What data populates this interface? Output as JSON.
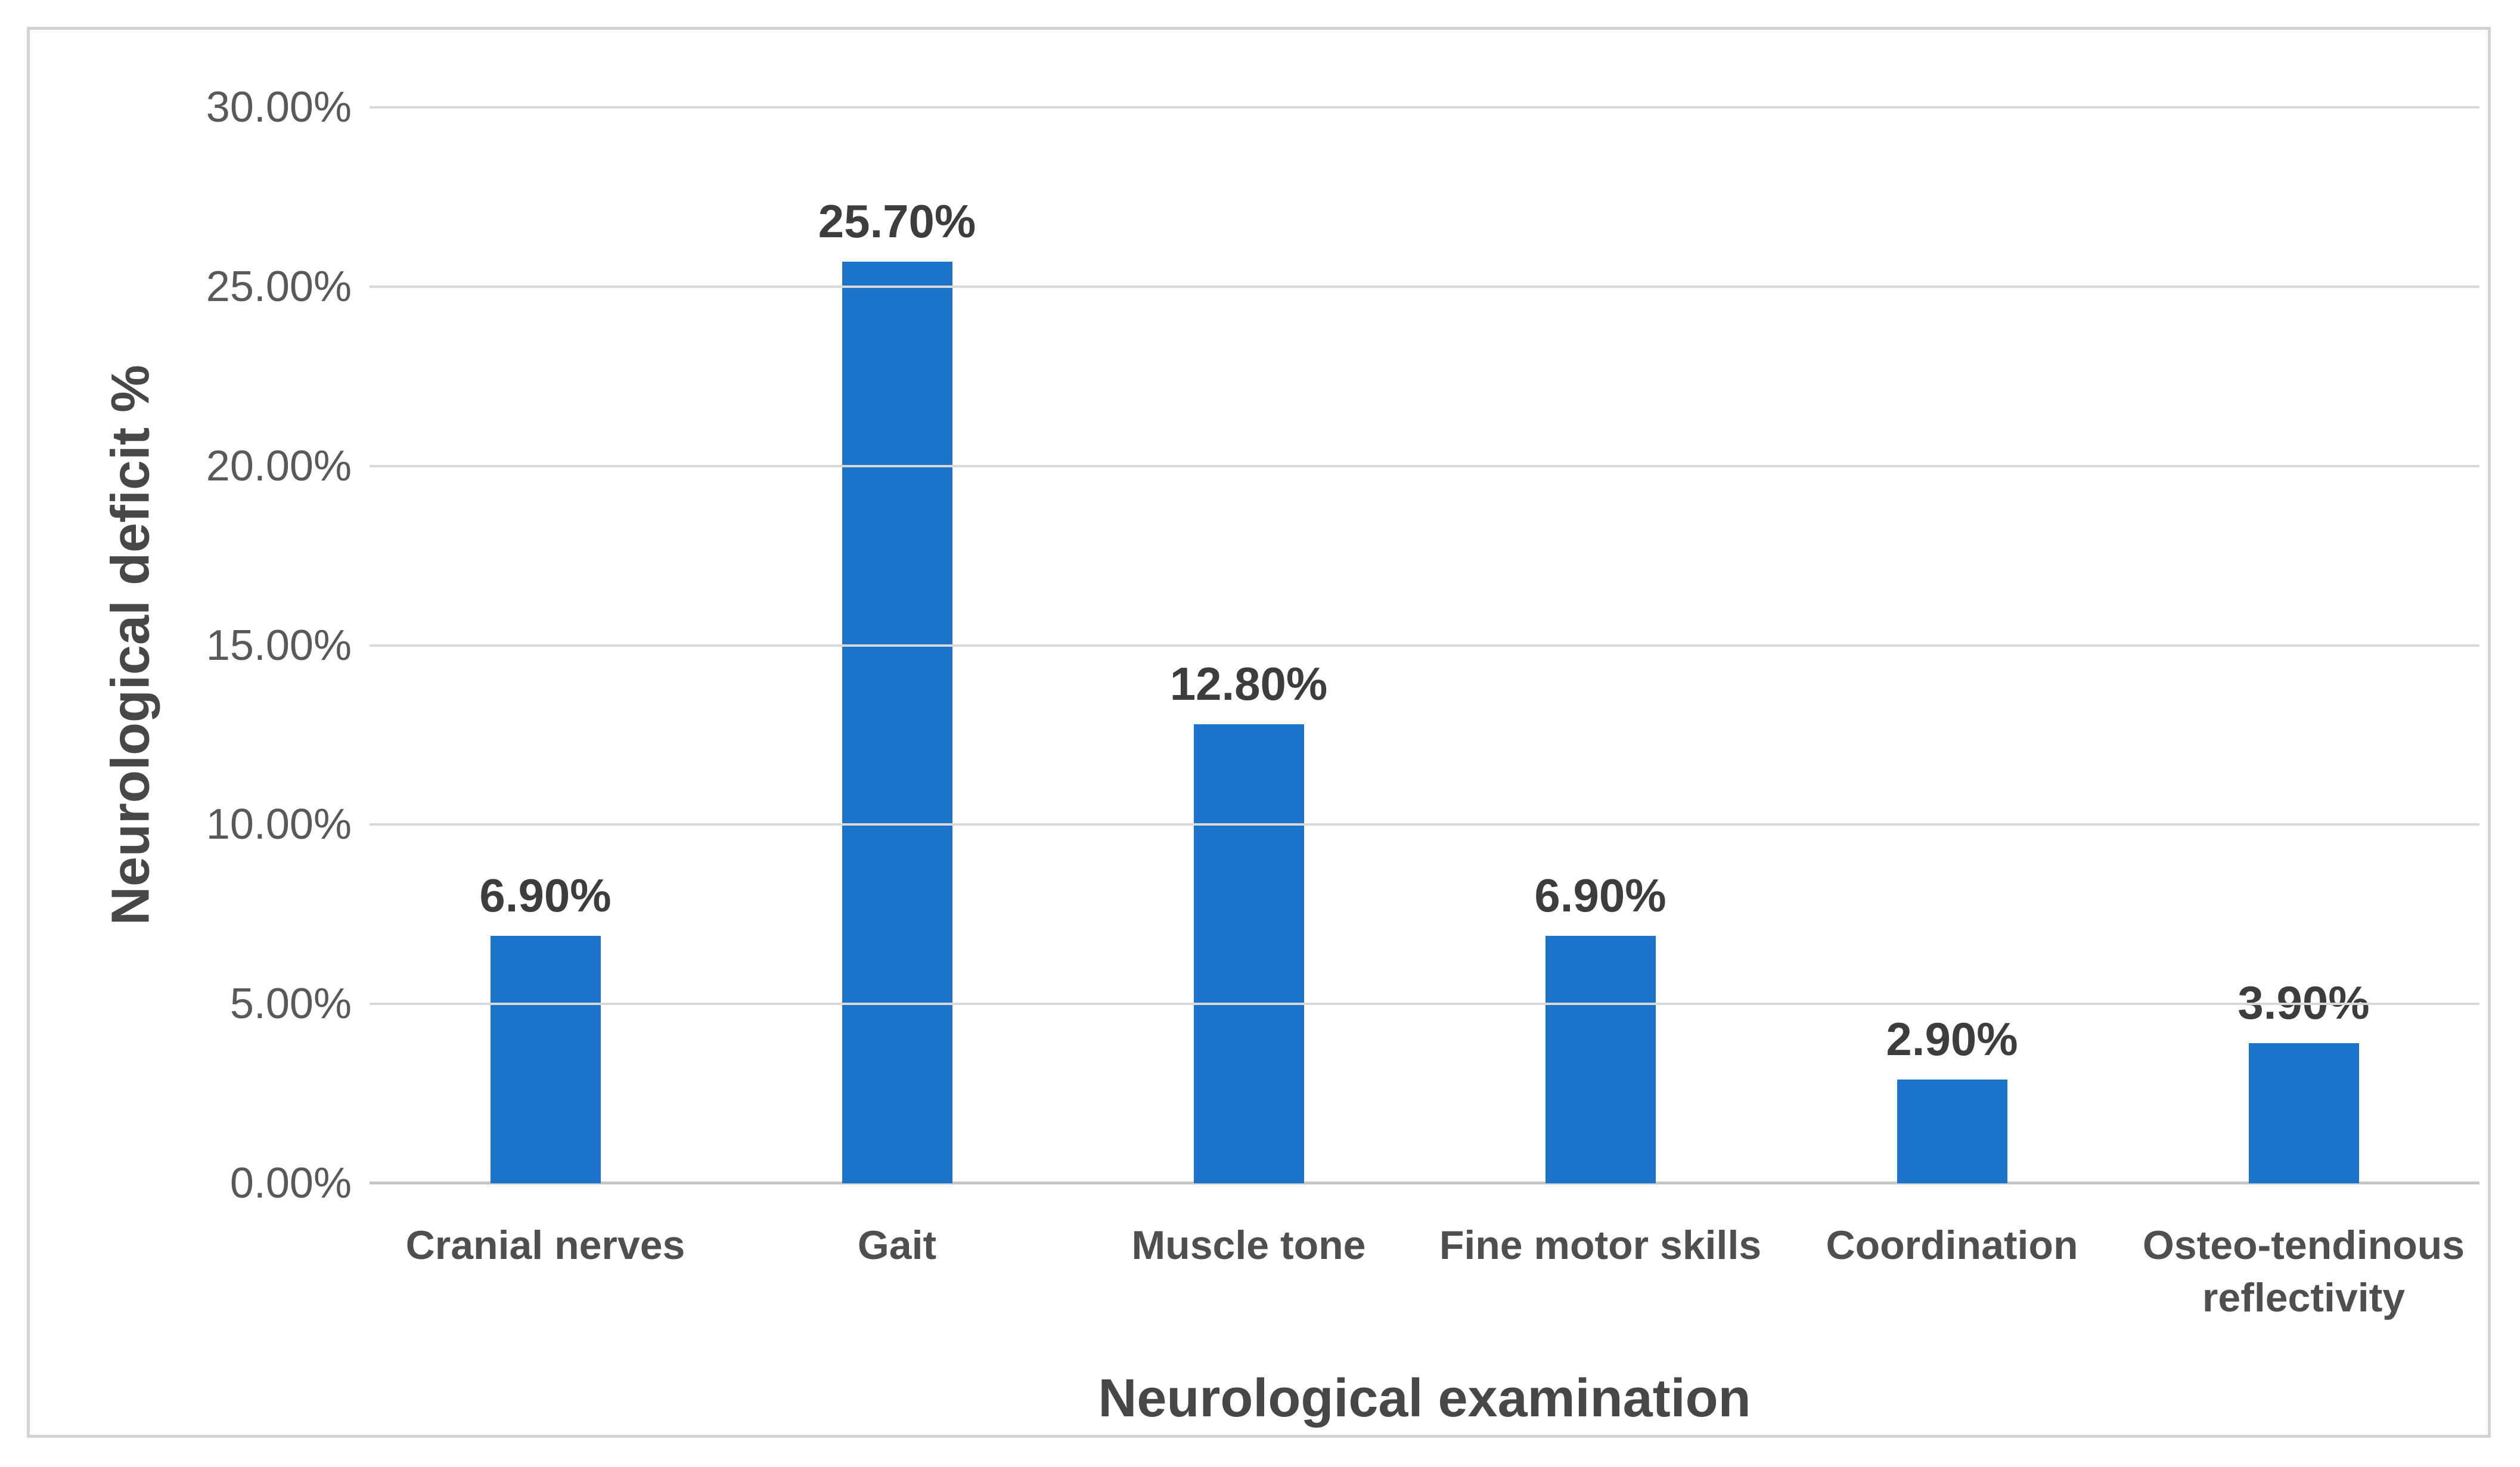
{
  "chart_data": {
    "type": "bar",
    "title": "",
    "categories": [
      "Cranial nerves",
      "Gait",
      "Muscle tone",
      "Fine motor skills",
      "Coordination",
      "Osteo-tendinous reflectivity"
    ],
    "values": [
      6.9,
      25.7,
      12.8,
      6.9,
      2.9,
      3.9
    ],
    "data_labels": [
      "6.90%",
      "25.70%",
      "12.80%",
      "6.90%",
      "2.90%",
      "3.90%"
    ],
    "xlabel": "Neurological examination",
    "ylabel": "Neurological deficit %",
    "ylim": [
      0,
      30
    ],
    "ytick_step": 5,
    "ytick_labels": [
      "0.00%",
      "5.00%",
      "10.00%",
      "15.00%",
      "20.00%",
      "25.00%",
      "30.00%"
    ],
    "grid": true,
    "legend": "none",
    "colors": {
      "bar": "#1b74c9",
      "gridline": "#d9d9d9",
      "axis_line": "#c6c6c6",
      "tick_text": "#595959",
      "label_text": "#3d3d3d",
      "title_text": "#474747",
      "frame_border": "#d2d2d2"
    }
  }
}
